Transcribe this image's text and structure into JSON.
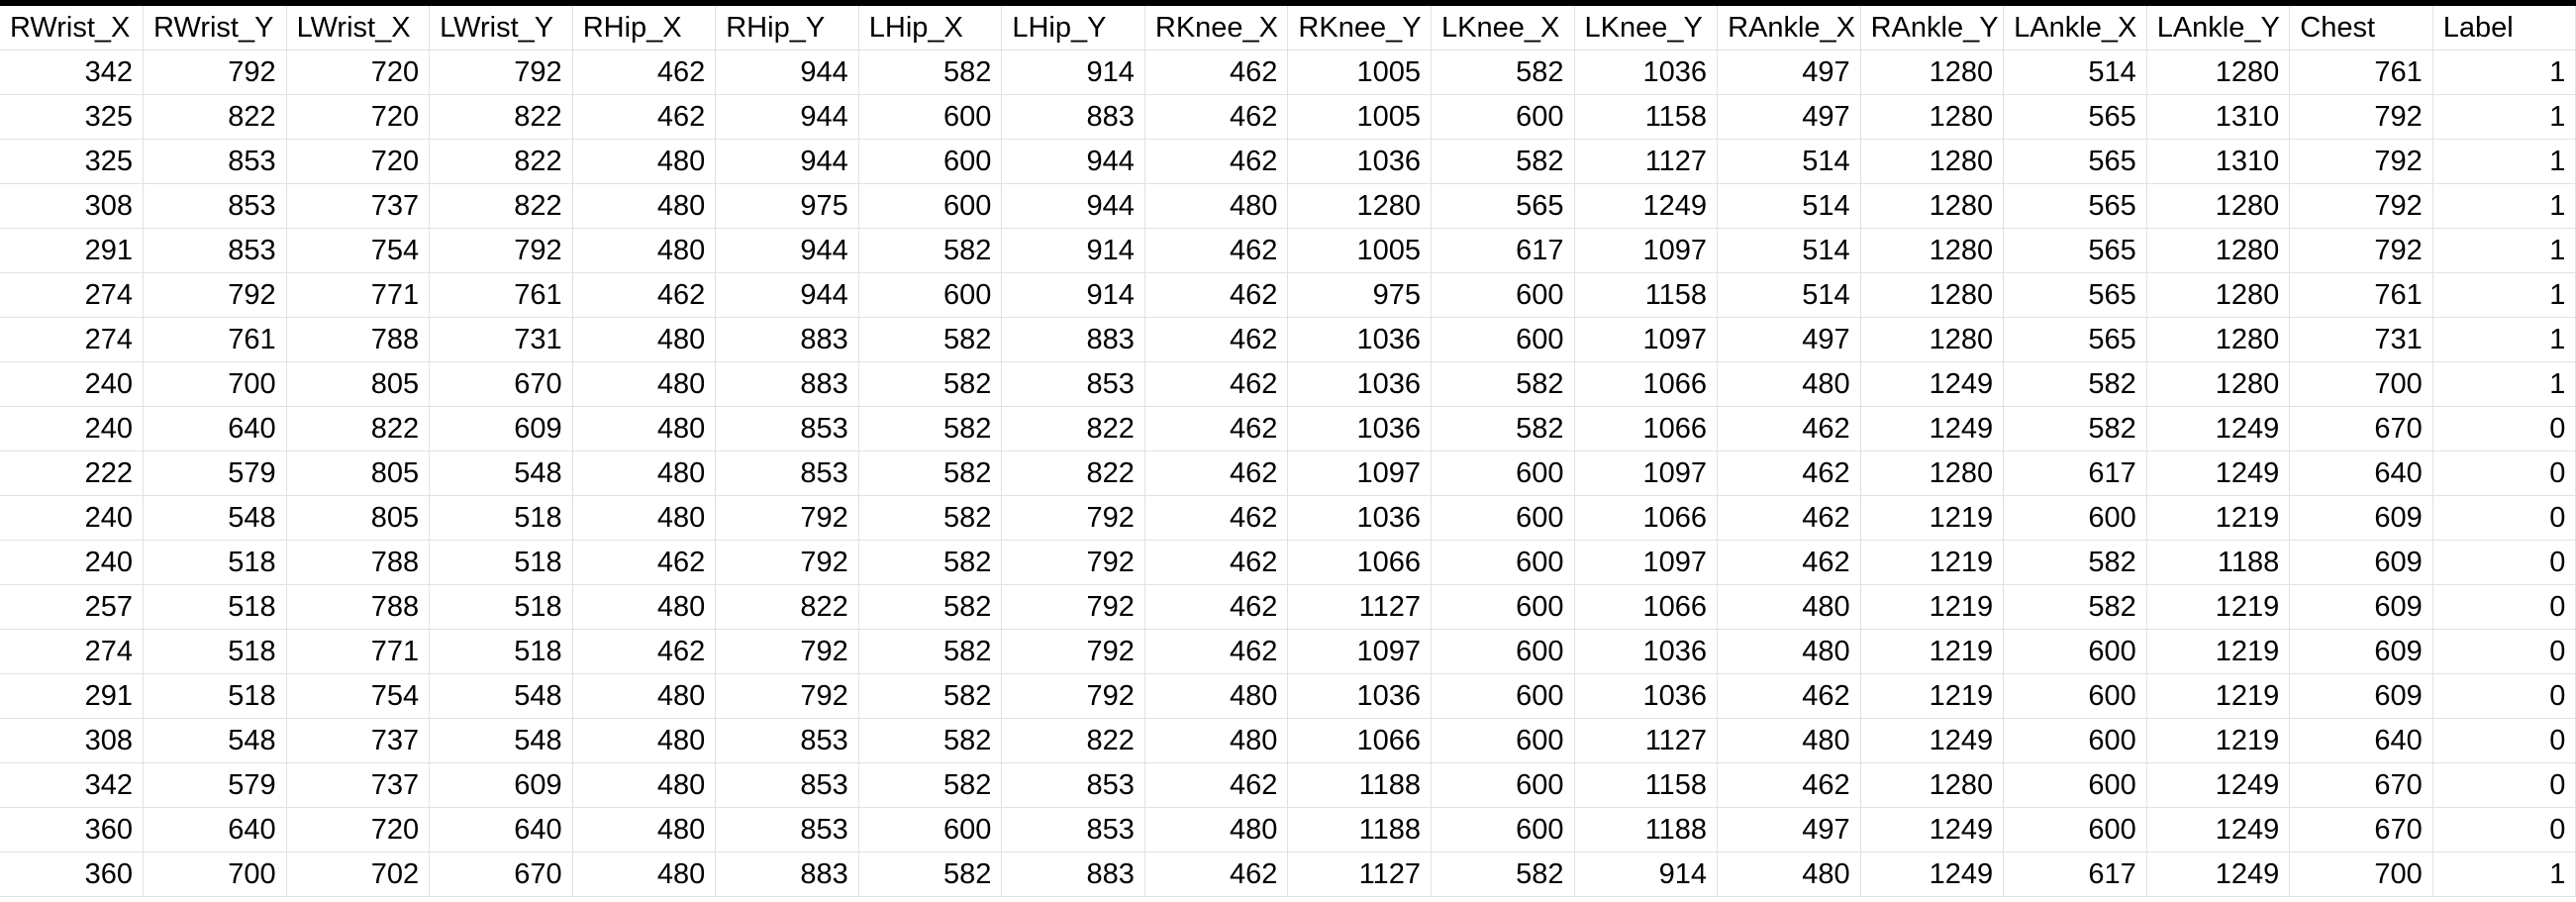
{
  "headers": [
    "RWrist_X",
    "RWrist_Y",
    "LWrist_X",
    "LWrist_Y",
    "RHip_X",
    "RHip_Y",
    "LHip_X",
    "LHip_Y",
    "RKnee_X",
    "RKnee_Y",
    "LKnee_X",
    "LKnee_Y",
    "RAnkle_X",
    "RAnkle_Y",
    "LAnkle_X",
    "LAnkle_Y",
    "Chest",
    "Label"
  ],
  "rows": [
    [
      "342",
      "792",
      "720",
      "792",
      "462",
      "944",
      "582",
      "914",
      "462",
      "1005",
      "582",
      "1036",
      "497",
      "1280",
      "514",
      "1280",
      "761",
      "1"
    ],
    [
      "325",
      "822",
      "720",
      "822",
      "462",
      "944",
      "600",
      "883",
      "462",
      "1005",
      "600",
      "1158",
      "497",
      "1280",
      "565",
      "1310",
      "792",
      "1"
    ],
    [
      "325",
      "853",
      "720",
      "822",
      "480",
      "944",
      "600",
      "944",
      "462",
      "1036",
      "582",
      "1127",
      "514",
      "1280",
      "565",
      "1310",
      "792",
      "1"
    ],
    [
      "308",
      "853",
      "737",
      "822",
      "480",
      "975",
      "600",
      "944",
      "480",
      "1280",
      "565",
      "1249",
      "514",
      "1280",
      "565",
      "1280",
      "792",
      "1"
    ],
    [
      "291",
      "853",
      "754",
      "792",
      "480",
      "944",
      "582",
      "914",
      "462",
      "1005",
      "617",
      "1097",
      "514",
      "1280",
      "565",
      "1280",
      "792",
      "1"
    ],
    [
      "274",
      "792",
      "771",
      "761",
      "462",
      "944",
      "600",
      "914",
      "462",
      "975",
      "600",
      "1158",
      "514",
      "1280",
      "565",
      "1280",
      "761",
      "1"
    ],
    [
      "274",
      "761",
      "788",
      "731",
      "480",
      "883",
      "582",
      "883",
      "462",
      "1036",
      "600",
      "1097",
      "497",
      "1280",
      "565",
      "1280",
      "731",
      "1"
    ],
    [
      "240",
      "700",
      "805",
      "670",
      "480",
      "883",
      "582",
      "853",
      "462",
      "1036",
      "582",
      "1066",
      "480",
      "1249",
      "582",
      "1280",
      "700",
      "1"
    ],
    [
      "240",
      "640",
      "822",
      "609",
      "480",
      "853",
      "582",
      "822",
      "462",
      "1036",
      "582",
      "1066",
      "462",
      "1249",
      "582",
      "1249",
      "670",
      "0"
    ],
    [
      "222",
      "579",
      "805",
      "548",
      "480",
      "853",
      "582",
      "822",
      "462",
      "1097",
      "600",
      "1097",
      "462",
      "1280",
      "617",
      "1249",
      "640",
      "0"
    ],
    [
      "240",
      "548",
      "805",
      "518",
      "480",
      "792",
      "582",
      "792",
      "462",
      "1036",
      "600",
      "1066",
      "462",
      "1219",
      "600",
      "1219",
      "609",
      "0"
    ],
    [
      "240",
      "518",
      "788",
      "518",
      "462",
      "792",
      "582",
      "792",
      "462",
      "1066",
      "600",
      "1097",
      "462",
      "1219",
      "582",
      "1188",
      "609",
      "0"
    ],
    [
      "257",
      "518",
      "788",
      "518",
      "480",
      "822",
      "582",
      "792",
      "462",
      "1127",
      "600",
      "1066",
      "480",
      "1219",
      "582",
      "1219",
      "609",
      "0"
    ],
    [
      "274",
      "518",
      "771",
      "518",
      "462",
      "792",
      "582",
      "792",
      "462",
      "1097",
      "600",
      "1036",
      "480",
      "1219",
      "600",
      "1219",
      "609",
      "0"
    ],
    [
      "291",
      "518",
      "754",
      "548",
      "480",
      "792",
      "582",
      "792",
      "480",
      "1036",
      "600",
      "1036",
      "462",
      "1219",
      "600",
      "1219",
      "609",
      "0"
    ],
    [
      "308",
      "548",
      "737",
      "548",
      "480",
      "853",
      "582",
      "822",
      "480",
      "1066",
      "600",
      "1127",
      "480",
      "1249",
      "600",
      "1219",
      "640",
      "0"
    ],
    [
      "342",
      "579",
      "737",
      "609",
      "480",
      "853",
      "582",
      "853",
      "462",
      "1188",
      "600",
      "1158",
      "462",
      "1280",
      "600",
      "1249",
      "670",
      "0"
    ],
    [
      "360",
      "640",
      "720",
      "640",
      "480",
      "853",
      "600",
      "853",
      "480",
      "1188",
      "600",
      "1188",
      "497",
      "1249",
      "600",
      "1249",
      "670",
      "0"
    ],
    [
      "360",
      "700",
      "702",
      "670",
      "480",
      "883",
      "582",
      "883",
      "462",
      "1127",
      "582",
      "914",
      "480",
      "1249",
      "617",
      "1249",
      "700",
      "1"
    ]
  ]
}
